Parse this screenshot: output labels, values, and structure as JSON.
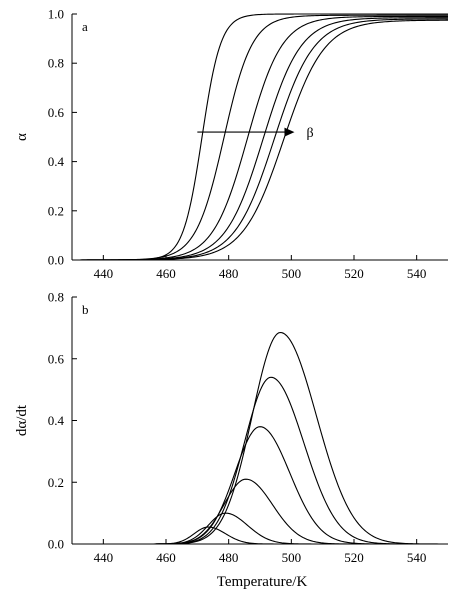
{
  "chart_data": [
    {
      "type": "line",
      "panel_label": "a",
      "xlabel": "",
      "ylabel": "α",
      "xlim": [
        430,
        550
      ],
      "ylim": [
        0,
        1.0
      ],
      "xticks": [
        440,
        460,
        480,
        500,
        520,
        540
      ],
      "yticks": [
        0.0,
        0.2,
        0.4,
        0.6,
        0.8,
        1.0
      ],
      "ytick_labels": [
        "0.0",
        "0.2",
        "0.4",
        "0.6",
        "0.8",
        "1.0"
      ],
      "annotation": {
        "text": "β",
        "from": [
          470,
          0.52
        ],
        "to": [
          501,
          0.52
        ]
      },
      "series": [
        {
          "midpoint": 471.5,
          "width": 3.0,
          "end": 1.0
        },
        {
          "midpoint": 478.5,
          "width": 4.5,
          "end": 0.995
        },
        {
          "midpoint": 486.0,
          "width": 5.5,
          "end": 0.99
        },
        {
          "midpoint": 491.0,
          "width": 6.0,
          "end": 0.985
        },
        {
          "midpoint": 494.5,
          "width": 6.3,
          "end": 0.98
        },
        {
          "midpoint": 497.5,
          "width": 6.5,
          "end": 0.975
        }
      ]
    },
    {
      "type": "line",
      "panel_label": "b",
      "xlabel": "Temperature/K",
      "ylabel": "dα/dt",
      "xlim": [
        430,
        550
      ],
      "ylim": [
        0,
        0.8
      ],
      "xticks": [
        440,
        460,
        480,
        500,
        520,
        540
      ],
      "yticks": [
        0.0,
        0.2,
        0.4,
        0.6,
        0.8
      ],
      "ytick_labels": [
        "0.0",
        "0.2",
        "0.4",
        "0.6",
        "0.8"
      ],
      "series": [
        {
          "peak_x": 473.5,
          "peak_y": 0.055,
          "left_width": 4.5,
          "right_width": 5.5
        },
        {
          "peak_x": 479.0,
          "peak_y": 0.1,
          "left_width": 5.5,
          "right_width": 7.0
        },
        {
          "peak_x": 485.5,
          "peak_y": 0.21,
          "left_width": 7.0,
          "right_width": 8.5
        },
        {
          "peak_x": 490.0,
          "peak_y": 0.38,
          "left_width": 8.0,
          "right_width": 9.5
        },
        {
          "peak_x": 493.5,
          "peak_y": 0.54,
          "left_width": 8.5,
          "right_width": 10.5
        },
        {
          "peak_x": 496.5,
          "peak_y": 0.685,
          "left_width": 9.0,
          "right_width": 11.5
        }
      ]
    }
  ]
}
